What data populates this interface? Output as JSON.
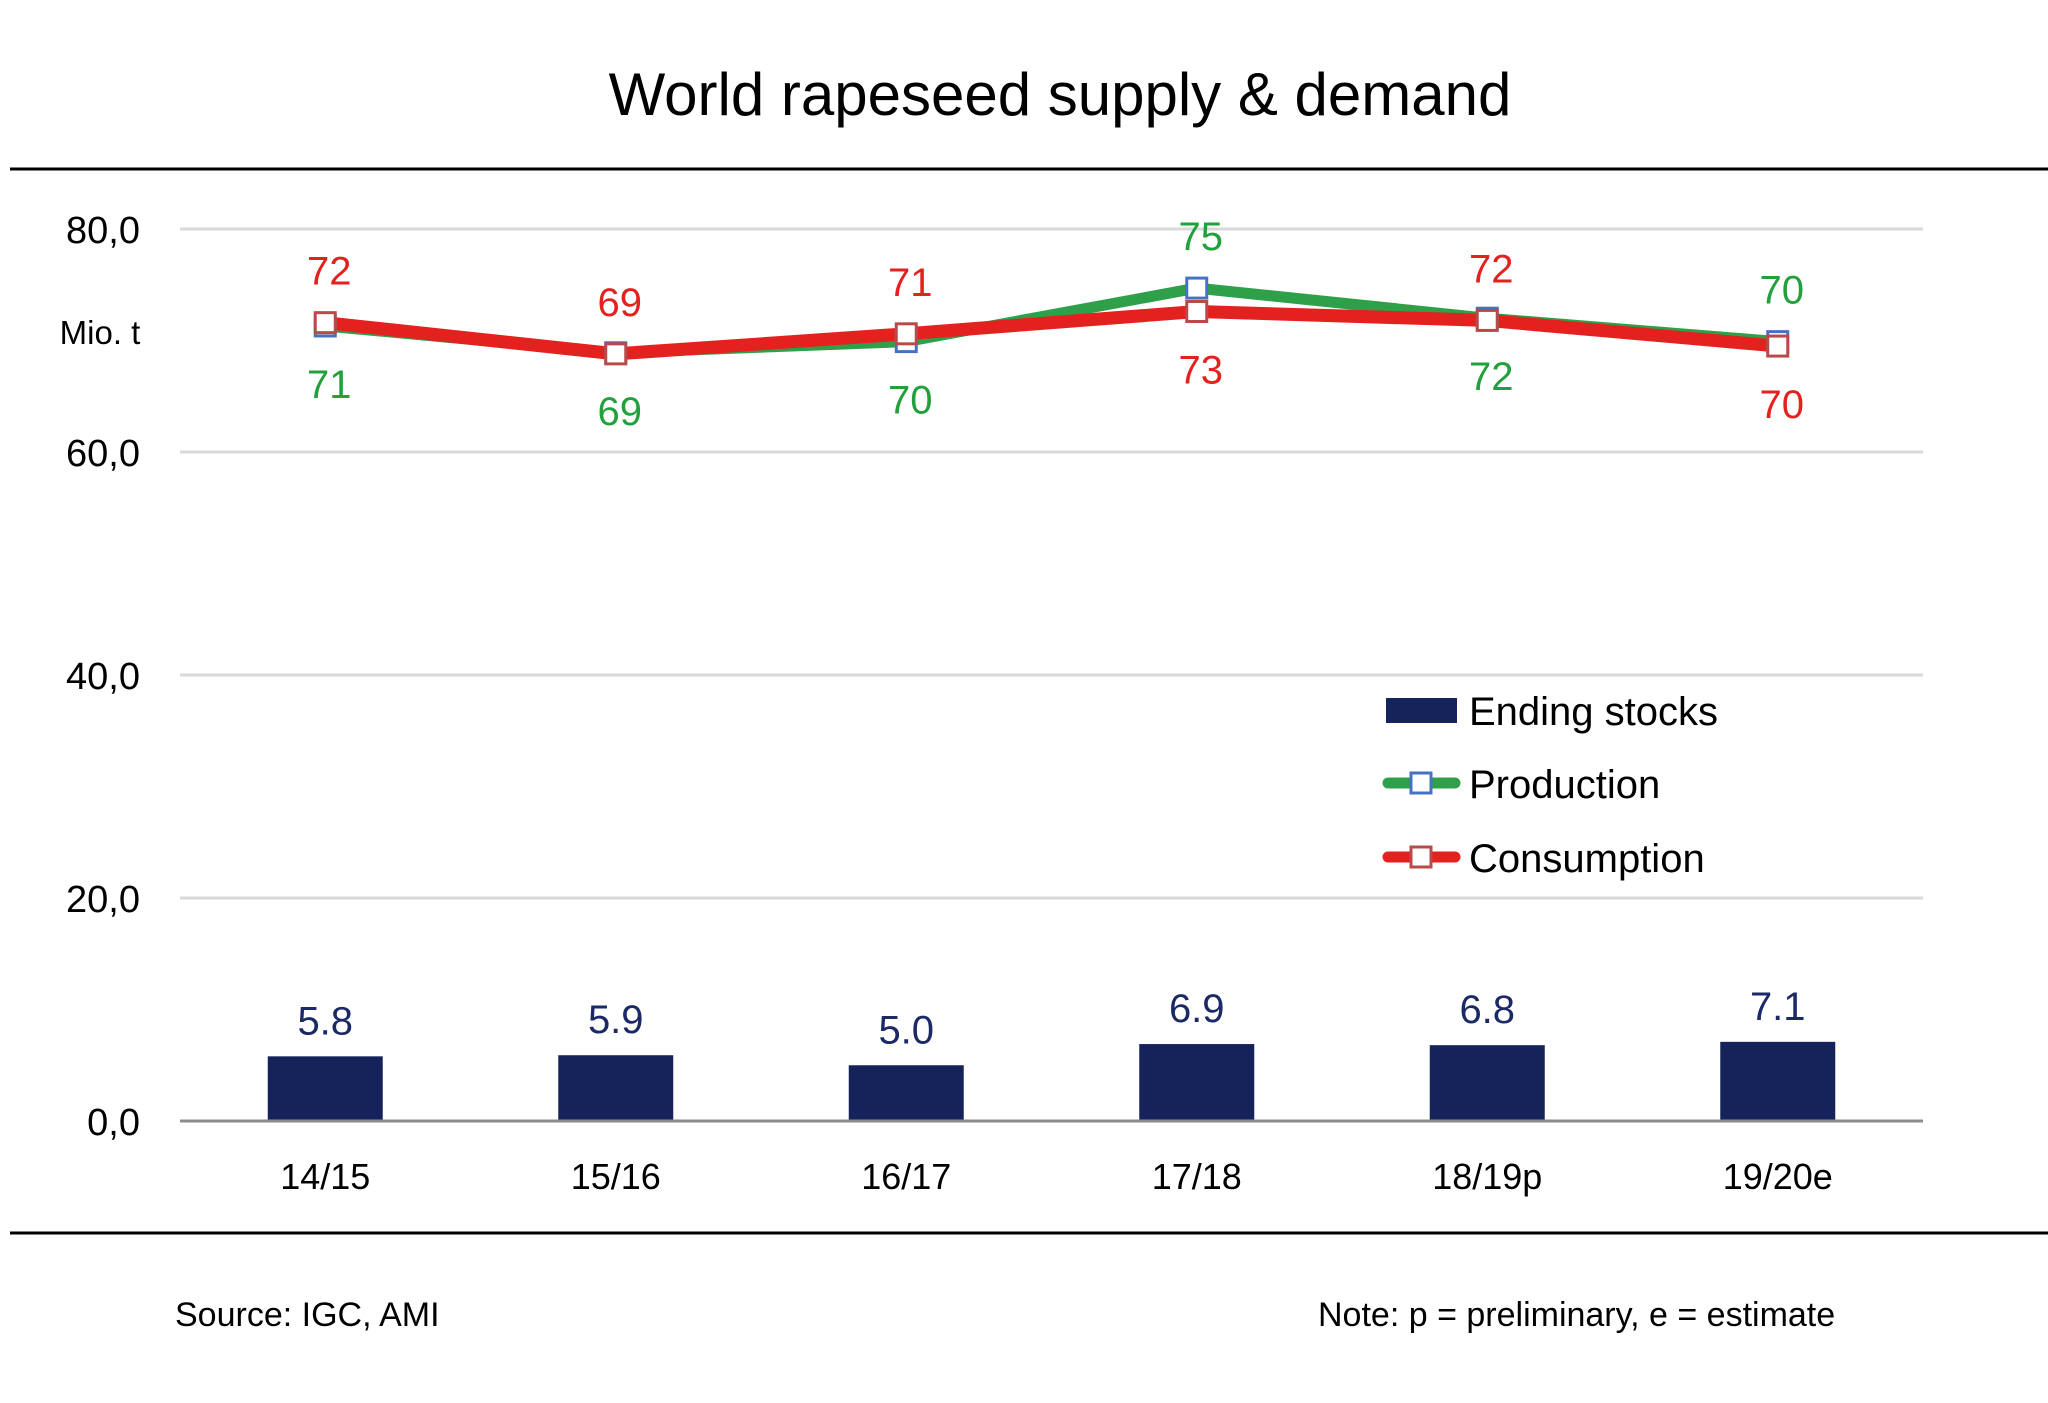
{
  "chart_data": {
    "type": "bar+line",
    "title": "World rapeseed supply & demand",
    "ylabel": "Mio. t",
    "xlabel": "",
    "ylim": [
      0,
      80
    ],
    "yticks": [
      0,
      20,
      40,
      60,
      80
    ],
    "ytick_labels": [
      "0,0",
      "20,0",
      "40,0",
      "60,0",
      "80,0"
    ],
    "grid": true,
    "categories": [
      "14/15",
      "15/16",
      "16/17",
      "17/18",
      "18/19p",
      "19/20e"
    ],
    "series": [
      {
        "name": "Ending stocks",
        "type": "bar",
        "color": "#16235a",
        "label_color": "#1b2a66",
        "values": [
          5.8,
          5.9,
          5.0,
          6.9,
          6.8,
          7.1
        ],
        "labels": [
          "5.8",
          "5.9",
          "5.0",
          "6.9",
          "6.8",
          "7.1"
        ]
      },
      {
        "name": "Production",
        "type": "line",
        "color": "#2ea04a",
        "marker_edge": "#4472c4",
        "label_color": "#22a03c",
        "values": [
          71.3,
          68.9,
          69.9,
          74.7,
          72.0,
          69.9
        ],
        "labels": [
          "71",
          "69",
          "70",
          "75",
          "72",
          "70"
        ],
        "label_position": [
          "below",
          "below",
          "below",
          "above",
          "below",
          "above"
        ]
      },
      {
        "name": "Consumption",
        "type": "line",
        "color": "#e3221f",
        "marker_edge": "#b84a4a",
        "label_color": "#e3221f",
        "values": [
          71.6,
          68.8,
          70.6,
          72.6,
          71.8,
          69.5
        ],
        "labels": [
          "72",
          "69",
          "71",
          "73",
          "72",
          "70"
        ],
        "label_position": [
          "above",
          "above",
          "above",
          "below",
          "above",
          "below"
        ]
      }
    ],
    "legend": {
      "placement": "center-right",
      "entries": [
        "Ending stocks",
        "Production",
        "Consumption"
      ]
    }
  },
  "footer": {
    "source": "Source: IGC, AMI",
    "note": "Note: p = preliminary, e = estimate"
  }
}
